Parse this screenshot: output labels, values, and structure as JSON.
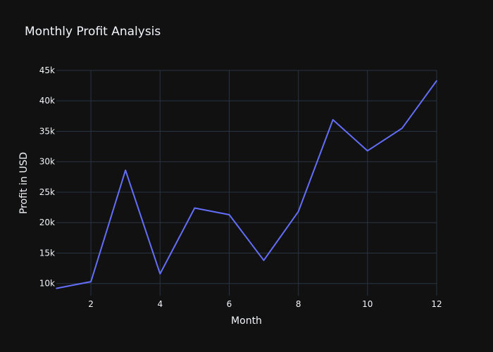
{
  "chart_data": {
    "type": "line",
    "title": "Monthly Profit Analysis",
    "xlabel": "Month",
    "ylabel": "Profit in USD",
    "xlim": [
      1,
      12
    ],
    "ylim": [
      8000,
      45000
    ],
    "xticks": [
      2,
      4,
      6,
      8,
      10,
      12
    ],
    "xtick_labels": [
      "2",
      "4",
      "6",
      "8",
      "10",
      "12"
    ],
    "yticks": [
      10000,
      15000,
      20000,
      25000,
      30000,
      35000,
      40000,
      45000
    ],
    "ytick_labels": [
      "10k",
      "15k",
      "20k",
      "25k",
      "30k",
      "35k",
      "40k",
      "45k"
    ],
    "grid": true,
    "background": "#111111",
    "grid_color": "#283442",
    "text_color": "#f2f5fa",
    "series": [
      {
        "color": "#636efa",
        "x": [
          1,
          2,
          3,
          4,
          5,
          6,
          7,
          8,
          9,
          10,
          11,
          12
        ],
        "y": [
          9200,
          10300,
          28600,
          11600,
          22400,
          21300,
          13800,
          21800,
          36900,
          31800,
          35500,
          43300
        ]
      }
    ]
  }
}
